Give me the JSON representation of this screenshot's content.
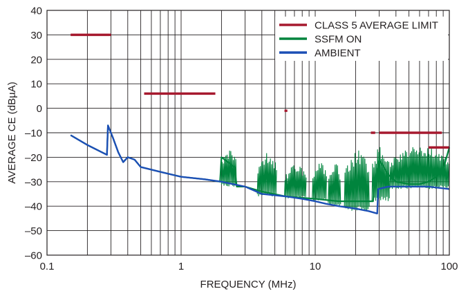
{
  "chart_data": {
    "type": "line",
    "title": "",
    "xlabel": "FREQUENCY (MHz)",
    "ylabel": "AVERAGE CE (dBµA)",
    "x_scale": "log",
    "xlim": [
      0.1,
      100
    ],
    "ylim": [
      -60,
      40
    ],
    "x_ticks": [
      {
        "value": 0.1,
        "label": "0.1"
      },
      {
        "value": 1,
        "label": "1"
      },
      {
        "value": 10,
        "label": "10"
      },
      {
        "value": 100,
        "label": "100"
      }
    ],
    "y_ticks": [
      {
        "value": 40,
        "label": "40"
      },
      {
        "value": 30,
        "label": "30"
      },
      {
        "value": 20,
        "label": "20"
      },
      {
        "value": 10,
        "label": "10"
      },
      {
        "value": 0,
        "label": "0"
      },
      {
        "value": -10,
        "label": "–10"
      },
      {
        "value": -20,
        "label": "–20"
      },
      {
        "value": -30,
        "label": "–30"
      },
      {
        "value": -40,
        "label": "–40"
      },
      {
        "value": -50,
        "label": "–50"
      },
      {
        "value": -60,
        "label": "–60"
      }
    ],
    "grid": true,
    "legend_position": "top-right",
    "series": [
      {
        "name": "CLASS 5 AVERAGE LIMIT",
        "color": "#a6192e",
        "segments": [
          {
            "x": [
              0.15,
              0.3
            ],
            "y": [
              30,
              30
            ]
          },
          {
            "x": [
              0.53,
              1.8
            ],
            "y": [
              6,
              6
            ]
          },
          {
            "x": [
              5.9,
              6.2
            ],
            "y": [
              -1,
              -1
            ]
          },
          {
            "x": [
              26,
              28
            ],
            "y": [
              -10,
              -10
            ]
          },
          {
            "x": [
              30,
              88
            ],
            "y": [
              -10,
              -10
            ]
          },
          {
            "x": [
              70,
              100
            ],
            "y": [
              -16,
              -16
            ]
          }
        ]
      },
      {
        "name": "SSFM ON",
        "color": "#00843d",
        "points": [
          [
            0.15,
            -11
          ],
          [
            0.2,
            -15
          ],
          [
            0.28,
            -19
          ],
          [
            0.285,
            -7
          ],
          [
            0.31,
            -12
          ],
          [
            0.34,
            -18
          ],
          [
            0.37,
            -22
          ],
          [
            0.4,
            -20
          ],
          [
            0.45,
            -21
          ],
          [
            0.5,
            -24
          ],
          [
            0.7,
            -26
          ],
          [
            1.0,
            -28
          ],
          [
            1.5,
            -29
          ],
          [
            1.95,
            -30
          ],
          [
            2.0,
            -20
          ],
          [
            2.5,
            -24
          ],
          [
            2.6,
            -32
          ],
          [
            3.0,
            -32
          ],
          [
            4.0,
            -34
          ],
          [
            6.0,
            -36
          ],
          [
            10.0,
            -37
          ],
          [
            15.0,
            -38
          ],
          [
            20.0,
            -38
          ],
          [
            27.0,
            -38
          ],
          [
            28.0,
            -30
          ],
          [
            30.0,
            -21
          ],
          [
            35.0,
            -27
          ],
          [
            40.0,
            -30
          ],
          [
            50.0,
            -31
          ],
          [
            60.0,
            -31
          ],
          [
            70.0,
            -30
          ],
          [
            80.0,
            -28
          ],
          [
            90.0,
            -25
          ],
          [
            100.0,
            -16
          ]
        ],
        "bursts": [
          {
            "x": [
              2.0,
              2.6
            ],
            "top": -17,
            "bottom": -32
          },
          {
            "x": [
              3.7,
              5.2
            ],
            "top": -18,
            "bottom": -36
          },
          {
            "x": [
              5.9,
              8.6
            ],
            "top": -23,
            "bottom": -37
          },
          {
            "x": [
              9.5,
              12.2
            ],
            "top": -22,
            "bottom": -38
          },
          {
            "x": [
              12.5,
              15.5
            ],
            "top": -22,
            "bottom": -40
          },
          {
            "x": [
              16.5,
              25.5
            ],
            "top": -17,
            "bottom": -42
          },
          {
            "x": [
              26.5,
              36.0
            ],
            "top": -15,
            "bottom": -38
          },
          {
            "x": [
              36.0,
              100.0
            ],
            "top": -15,
            "bottom": -33
          }
        ]
      },
      {
        "name": "AMBIENT",
        "color": "#1c4fb5",
        "points": [
          [
            0.15,
            -11
          ],
          [
            0.2,
            -15
          ],
          [
            0.28,
            -19
          ],
          [
            0.285,
            -7
          ],
          [
            0.31,
            -12
          ],
          [
            0.34,
            -18
          ],
          [
            0.37,
            -22
          ],
          [
            0.4,
            -20
          ],
          [
            0.45,
            -21
          ],
          [
            0.5,
            -24
          ],
          [
            0.7,
            -26
          ],
          [
            1.0,
            -28
          ],
          [
            1.5,
            -29
          ],
          [
            2.0,
            -30
          ],
          [
            3.0,
            -32
          ],
          [
            4.0,
            -35
          ],
          [
            6.0,
            -36
          ],
          [
            8.0,
            -37
          ],
          [
            10.0,
            -38
          ],
          [
            12.0,
            -39
          ],
          [
            15.0,
            -40
          ],
          [
            20.0,
            -41
          ],
          [
            25.0,
            -42
          ],
          [
            29.0,
            -43
          ],
          [
            29.5,
            -33
          ],
          [
            35.0,
            -32
          ],
          [
            50.0,
            -32
          ],
          [
            70.0,
            -32
          ],
          [
            100.0,
            -33
          ]
        ]
      }
    ]
  }
}
